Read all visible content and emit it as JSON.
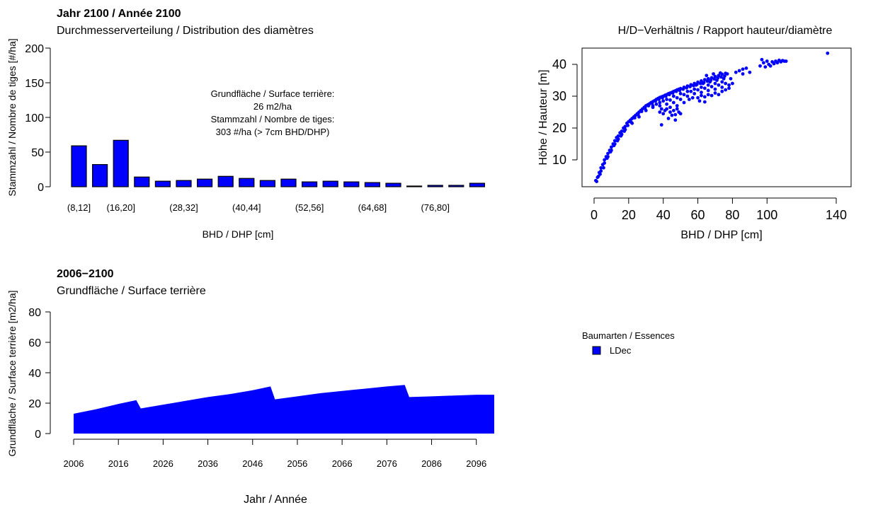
{
  "colors": {
    "series": "#0000ff",
    "outline": "#000000",
    "background": "#ffffff"
  },
  "chart_data": [
    {
      "id": "diameter-distribution",
      "type": "bar",
      "title": "Jahr 2100 / Année 2100",
      "subtitle": "Durchmesserverteilung / Distribution des diamètres",
      "xlabel": "BHD / DHP [cm]",
      "ylabel": "Stammzahl / Nombre de tiges [#/ha]",
      "ylim": [
        0,
        200
      ],
      "yticks": [
        0,
        50,
        100,
        150,
        200
      ],
      "categories": [
        "(8,12]",
        "(12,16]",
        "(16,20]",
        "(20,24]",
        "(24,28]",
        "(28,32]",
        "(32,36]",
        "(36,40]",
        "(40,44]",
        "(44,48]",
        "(48,52]",
        "(52,56]",
        "(56,60]",
        "(60,64]",
        "(64,68]",
        "(68,72]",
        "(72,76]",
        "(76,80]",
        "(80,84]",
        "(84,88]"
      ],
      "shown_tick_labels": [
        "(8,12]",
        "(16,20]",
        "(28,32]",
        "(40,44]",
        "(52,56]",
        "(64,68]",
        "(76,80]"
      ],
      "values": [
        59,
        32,
        67,
        14,
        8,
        9,
        11,
        15,
        12,
        9,
        11,
        7,
        8,
        7,
        6,
        5,
        1,
        2,
        2,
        5
      ],
      "annotation": [
        "Grundfläche / Surface terrière:",
        "26 m2/ha",
        "Stammzahl / Nombre de tiges:",
        "303 #/ha (> 7cm BHD/DHP)"
      ]
    },
    {
      "id": "height-diameter",
      "type": "scatter",
      "title": "H/D−Verhältnis / Rapport hauteur/diamètre",
      "xlabel": "BHD / DHP [cm]",
      "ylabel": "Höhe / Hauteur [m]",
      "xlim": [
        0,
        140
      ],
      "ylim": [
        3,
        44
      ],
      "xticks": [
        0,
        20,
        40,
        60,
        80,
        100,
        140
      ],
      "yticks": [
        10,
        20,
        30,
        40
      ],
      "points": [
        [
          1.0,
          3.5
        ],
        [
          2.0,
          4.5
        ],
        [
          3.0,
          6.0
        ],
        [
          4.0,
          7.5
        ],
        [
          5.0,
          8.5
        ],
        [
          6.0,
          10.0
        ],
        [
          7.0,
          11.0
        ],
        [
          8.0,
          12.0
        ],
        [
          9.0,
          13.0
        ],
        [
          10.0,
          14.0
        ],
        [
          11.0,
          15.0
        ],
        [
          12.0,
          16.0
        ],
        [
          13.0,
          17.0
        ],
        [
          14.0,
          17.5
        ],
        [
          15.0,
          18.5
        ],
        [
          16.0,
          19.0
        ],
        [
          17.0,
          20.0
        ],
        [
          18.0,
          20.5
        ],
        [
          19.0,
          21.5
        ],
        [
          20.0,
          22.0
        ],
        [
          21.0,
          22.5
        ],
        [
          22.0,
          23.0
        ],
        [
          23.0,
          23.5
        ],
        [
          24.0,
          24.0
        ],
        [
          25.0,
          24.5
        ],
        [
          26.0,
          25.0
        ],
        [
          27.0,
          25.5
        ],
        [
          28.0,
          26.0
        ],
        [
          29.0,
          26.5
        ],
        [
          30.0,
          27.0
        ],
        [
          31.0,
          27.3
        ],
        [
          32.0,
          27.6
        ],
        [
          33.0,
          28.0
        ],
        [
          34.0,
          28.3
        ],
        [
          35.0,
          28.6
        ],
        [
          36.0,
          29.0
        ],
        [
          37.0,
          29.3
        ],
        [
          38.0,
          29.6
        ],
        [
          39.0,
          29.8
        ],
        [
          40.0,
          30.0
        ],
        [
          41.0,
          30.3
        ],
        [
          42.0,
          30.5
        ],
        [
          43.0,
          30.8
        ],
        [
          44.0,
          31.0
        ],
        [
          45.0,
          31.2
        ],
        [
          46.0,
          31.5
        ],
        [
          47.0,
          31.7
        ],
        [
          48.0,
          32.0
        ],
        [
          49.0,
          32.2
        ],
        [
          50.0,
          32.4
        ],
        [
          52.0,
          32.8
        ],
        [
          54.0,
          33.2
        ],
        [
          56.0,
          33.6
        ],
        [
          58.0,
          34.0
        ],
        [
          60.0,
          34.4
        ],
        [
          62.0,
          34.8
        ],
        [
          64.0,
          35.2
        ],
        [
          66.0,
          35.5
        ],
        [
          68.0,
          35.8
        ],
        [
          70.0,
          36.2
        ],
        [
          72.0,
          36.5
        ],
        [
          74.0,
          36.9
        ],
        [
          76.0,
          37.2
        ],
        [
          4.0,
          6.5
        ],
        [
          6.0,
          9.0
        ],
        [
          8.0,
          11.0
        ],
        [
          10.0,
          13.0
        ],
        [
          12.0,
          15.0
        ],
        [
          14.0,
          16.5
        ],
        [
          16.0,
          18.0
        ],
        [
          18.0,
          19.5
        ],
        [
          22.0,
          21.5
        ],
        [
          26.0,
          23.5
        ],
        [
          30.0,
          25.5
        ],
        [
          34.0,
          27.0
        ],
        [
          38.0,
          28.0
        ],
        [
          42.0,
          29.0
        ],
        [
          46.0,
          30.0
        ],
        [
          50.0,
          30.8
        ],
        [
          54.0,
          31.5
        ],
        [
          58.0,
          32.2
        ],
        [
          62.0,
          32.8
        ],
        [
          66.0,
          33.5
        ],
        [
          70.0,
          34.0
        ],
        [
          74.0,
          34.5
        ],
        [
          34.0,
          26.5
        ],
        [
          36.0,
          27.5
        ],
        [
          38.0,
          27.0
        ],
        [
          40.0,
          28.5
        ],
        [
          42.0,
          27.5
        ],
        [
          44.0,
          28.8
        ],
        [
          46.0,
          28.0
        ],
        [
          48.0,
          29.5
        ],
        [
          50.0,
          29.0
        ],
        [
          52.0,
          30.5
        ],
        [
          54.0,
          30.0
        ],
        [
          56.0,
          31.5
        ],
        [
          58.0,
          30.8
        ],
        [
          60.0,
          32.0
        ],
        [
          62.0,
          31.2
        ],
        [
          64.0,
          32.5
        ],
        [
          66.0,
          31.8
        ],
        [
          68.0,
          33.0
        ],
        [
          70.0,
          32.2
        ],
        [
          72.0,
          33.5
        ],
        [
          74.0,
          32.8
        ],
        [
          76.0,
          34.0
        ],
        [
          78.0,
          33.5
        ],
        [
          60.0,
          29.5
        ],
        [
          62.0,
          30.2
        ],
        [
          64.0,
          29.8
        ],
        [
          66.0,
          30.5
        ],
        [
          68.0,
          30.2
        ],
        [
          70.0,
          31.0
        ],
        [
          72.0,
          30.5
        ],
        [
          74.0,
          31.5
        ],
        [
          76.0,
          32.0
        ],
        [
          78.0,
          32.5
        ],
        [
          61.0,
          28.5
        ],
        [
          64.0,
          28.2
        ],
        [
          59.0,
          33.5
        ],
        [
          63.0,
          34.0
        ],
        [
          67.0,
          34.5
        ],
        [
          71.0,
          35.0
        ],
        [
          75.0,
          35.5
        ],
        [
          65.0,
          36.5
        ],
        [
          69.0,
          37.0
        ],
        [
          73.0,
          37.3
        ],
        [
          77.0,
          37.0
        ],
        [
          80.0,
          34.0
        ],
        [
          79.0,
          35.5
        ],
        [
          82.0,
          37.5
        ],
        [
          84.0,
          38.0
        ],
        [
          86.0,
          38.5
        ],
        [
          88.0,
          38.8
        ],
        [
          86.0,
          37.0
        ],
        [
          90.0,
          37.5
        ],
        [
          96.0,
          39.5
        ],
        [
          97.0,
          41.5
        ],
        [
          98.0,
          40.5
        ],
        [
          99.0,
          39.2
        ],
        [
          100.0,
          41.0
        ],
        [
          101.0,
          40.0
        ],
        [
          102.0,
          39.5
        ],
        [
          103.0,
          40.8
        ],
        [
          104.0,
          40.2
        ],
        [
          105.0,
          41.0
        ],
        [
          106.0,
          40.5
        ],
        [
          107.0,
          41.3
        ],
        [
          108.0,
          40.8
        ],
        [
          109.0,
          41.2
        ],
        [
          110.0,
          41.0
        ],
        [
          111.0,
          41.0
        ],
        [
          135.0,
          43.5
        ],
        [
          38.0,
          25.0
        ],
        [
          39.0,
          26.0
        ],
        [
          40.0,
          24.5
        ],
        [
          41.0,
          25.5
        ],
        [
          42.0,
          26.0
        ],
        [
          44.0,
          25.0
        ],
        [
          45.0,
          24.0
        ],
        [
          46.0,
          25.5
        ],
        [
          47.0,
          24.2
        ],
        [
          48.0,
          26.0
        ],
        [
          49.0,
          25.0
        ],
        [
          50.0,
          24.5
        ],
        [
          39.0,
          21.0
        ],
        [
          43.0,
          23.0
        ],
        [
          47.0,
          22.5
        ],
        [
          44.0,
          26.5
        ],
        [
          48.0,
          27.0
        ],
        [
          52.0,
          28.0
        ],
        [
          55.0,
          29.0
        ],
        [
          57.0,
          29.5
        ],
        [
          1.5,
          3.2
        ],
        [
          2.5,
          4.8
        ],
        [
          3.5,
          5.5
        ],
        [
          5.5,
          7.5
        ],
        [
          7.5,
          10.5
        ],
        [
          9.5,
          12.5
        ],
        [
          11.5,
          14.5
        ],
        [
          13.5,
          16.0
        ],
        [
          15.5,
          17.5
        ],
        [
          17.5,
          19.0
        ],
        [
          19.5,
          20.8
        ],
        [
          21.5,
          21.8
        ],
        [
          23.5,
          23.2
        ],
        [
          25.5,
          24.2
        ],
        [
          27.5,
          25.2
        ],
        [
          29.5,
          26.2
        ],
        [
          31.5,
          27.0
        ],
        [
          33.5,
          27.8
        ],
        [
          35.5,
          28.5
        ],
        [
          37.5,
          29.0
        ],
        [
          39.5,
          29.5
        ],
        [
          41.5,
          30.0
        ],
        [
          43.5,
          30.5
        ],
        [
          45.5,
          31.0
        ],
        [
          47.5,
          31.5
        ],
        [
          49.5,
          31.8
        ],
        [
          51.5,
          32.2
        ],
        [
          53.5,
          32.6
        ],
        [
          55.5,
          33.0
        ],
        [
          57.5,
          33.3
        ],
        [
          59.5,
          33.7
        ],
        [
          61.5,
          34.0
        ],
        [
          63.5,
          34.3
        ],
        [
          65.5,
          34.7
        ],
        [
          67.5,
          35.0
        ],
        [
          69.5,
          35.4
        ],
        [
          71.5,
          35.7
        ],
        [
          73.5,
          36.0
        ],
        [
          75.5,
          36.3
        ]
      ]
    },
    {
      "id": "basal-area",
      "type": "area",
      "title": "2006−2100",
      "subtitle": "Grundfläche / Surface terrière",
      "xlabel": "Jahr / Année",
      "ylabel": "Grundfläche / Surface terrière [m2/ha]",
      "xlim": [
        2006,
        2100
      ],
      "ylim": [
        0,
        80
      ],
      "yticks": [
        0,
        20,
        40,
        60,
        80
      ],
      "xticks": [
        2006,
        2016,
        2026,
        2036,
        2046,
        2056,
        2066,
        2076,
        2086,
        2096
      ],
      "x": [
        2006,
        2011,
        2016,
        2020,
        2021,
        2026,
        2031,
        2036,
        2041,
        2046,
        2050,
        2051,
        2056,
        2061,
        2066,
        2071,
        2076,
        2080,
        2081,
        2086,
        2091,
        2096,
        2100
      ],
      "values": [
        13,
        16,
        19.5,
        22,
        16.5,
        19,
        21.5,
        24,
        26,
        28.5,
        31,
        22.5,
        24.5,
        26.5,
        28,
        29.5,
        31,
        32,
        24,
        24.5,
        25,
        25.5,
        25.5
      ],
      "legend": {
        "title": "Baumarten / Essences",
        "entries": [
          {
            "label": "LDec",
            "color": "#0000ff"
          }
        ]
      }
    }
  ]
}
